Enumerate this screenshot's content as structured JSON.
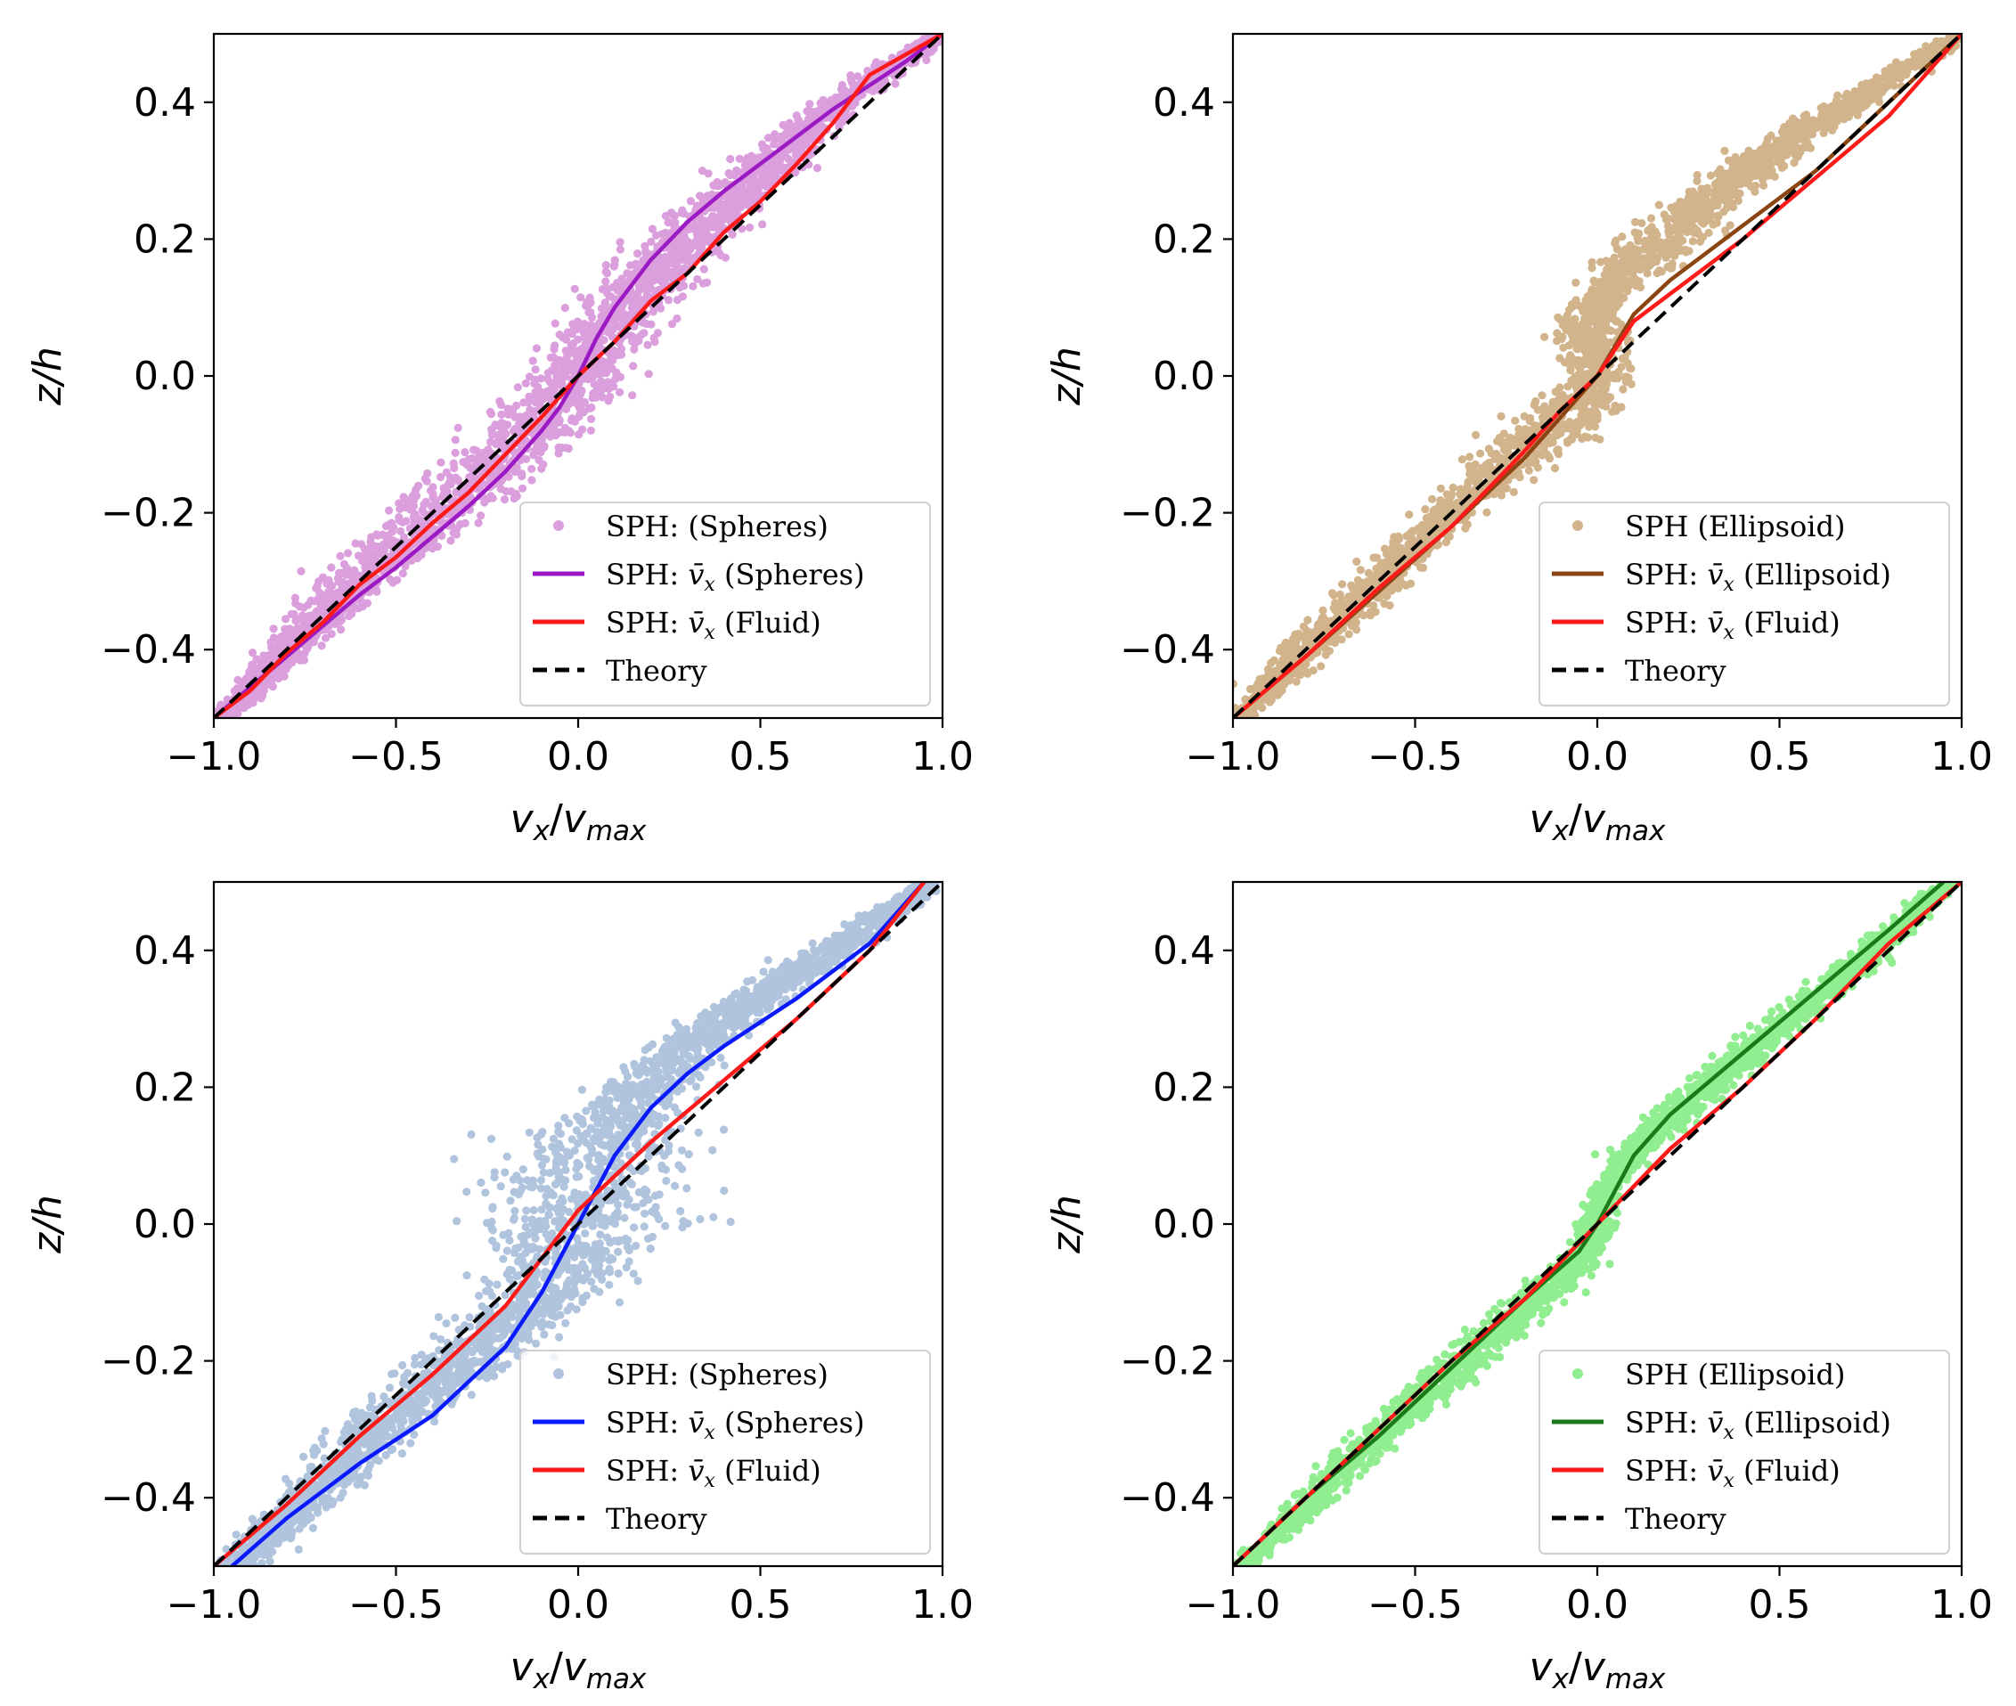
{
  "figure": {
    "panels": 4,
    "layout": "2x2"
  },
  "chart_data": [
    {
      "type": "scatter+line",
      "position": "top-left",
      "xlabel": "v_x/v_max",
      "ylabel": "z/h",
      "xlim": [
        -1.0,
        1.0
      ],
      "ylim": [
        -0.5,
        0.5
      ],
      "xticks": [
        -1.0,
        -0.5,
        0.0,
        0.5,
        1.0
      ],
      "xtick_labels": [
        "−1.0",
        "−0.5",
        "0.0",
        "0.5",
        "1.0"
      ],
      "yticks": [
        -0.4,
        -0.2,
        0.0,
        0.2,
        0.4
      ],
      "ytick_labels": [
        "−0.4",
        "−0.2",
        "0.0",
        "0.2",
        "0.4"
      ],
      "legend_position": "lower-right",
      "scatter": {
        "name": "SPH: (Spheres)",
        "color": "#da9fdc",
        "profile": {
          "z": [
            -0.5,
            -0.4,
            -0.3,
            -0.2,
            -0.1,
            -0.04,
            0.0,
            0.05,
            0.1,
            0.2,
            0.3,
            0.4,
            0.5
          ],
          "center": [
            -0.97,
            -0.8,
            -0.6,
            -0.38,
            -0.17,
            -0.06,
            0.0,
            0.05,
            0.12,
            0.3,
            0.5,
            0.72,
            1.0
          ],
          "width": [
            0.03,
            0.06,
            0.09,
            0.12,
            0.14,
            0.13,
            0.11,
            0.12,
            0.13,
            0.11,
            0.09,
            0.06,
            0.03
          ]
        }
      },
      "series": [
        {
          "name": "SPH: v̄x (Spheres)",
          "legend_main": "SPH: ",
          "legend_var": "v̄x",
          "legend_tail": " (Spheres)",
          "color": "#9b1ac4",
          "style": "solid",
          "x": [
            -1.0,
            -0.9,
            -0.8,
            -0.7,
            -0.6,
            -0.5,
            -0.4,
            -0.3,
            -0.2,
            -0.1,
            -0.05,
            0.0,
            0.05,
            0.1,
            0.2,
            0.3,
            0.4,
            0.5,
            0.6,
            0.7,
            0.8,
            0.9,
            1.0
          ],
          "y": [
            -0.5,
            -0.455,
            -0.41,
            -0.365,
            -0.32,
            -0.28,
            -0.235,
            -0.19,
            -0.14,
            -0.08,
            -0.045,
            0.0,
            0.055,
            0.1,
            0.17,
            0.225,
            0.27,
            0.31,
            0.35,
            0.39,
            0.425,
            0.46,
            0.5
          ]
        },
        {
          "name": "SPH: v̄x (Fluid)",
          "legend_main": "SPH: ",
          "legend_var": "v̄x",
          "legend_tail": " (Fluid)",
          "color": "#ff1a1a",
          "style": "solid",
          "x": [
            -1.0,
            -0.9,
            -0.8,
            -0.7,
            -0.6,
            -0.5,
            -0.4,
            -0.3,
            -0.2,
            -0.1,
            0.0,
            0.1,
            0.2,
            0.3,
            0.4,
            0.5,
            0.6,
            0.7,
            0.8,
            0.9,
            1.0
          ],
          "y": [
            -0.5,
            -0.46,
            -0.405,
            -0.36,
            -0.305,
            -0.265,
            -0.215,
            -0.17,
            -0.115,
            -0.06,
            0.0,
            0.05,
            0.11,
            0.15,
            0.21,
            0.255,
            0.31,
            0.37,
            0.44,
            0.47,
            0.5
          ]
        },
        {
          "name": "Theory",
          "legend_main": "Theory",
          "color": "#000000",
          "style": "dashed",
          "x": [
            -1.0,
            1.0
          ],
          "y": [
            -0.5,
            0.5
          ]
        }
      ]
    },
    {
      "type": "scatter+line",
      "position": "top-right",
      "xlabel": "v_x/v_max",
      "ylabel": "z/h",
      "xlim": [
        -1.0,
        1.0
      ],
      "ylim": [
        -0.5,
        0.5
      ],
      "xticks": [
        -1.0,
        -0.5,
        0.0,
        0.5,
        1.0
      ],
      "xtick_labels": [
        "−1.0",
        "−0.5",
        "0.0",
        "0.5",
        "1.0"
      ],
      "yticks": [
        -0.4,
        -0.2,
        0.0,
        0.2,
        0.4
      ],
      "ytick_labels": [
        "−0.4",
        "−0.2",
        "0.0",
        "0.2",
        "0.4"
      ],
      "legend_position": "lower-right",
      "scatter": {
        "name": "SPH (Ellipsoid)",
        "color": "#d2b48c",
        "profile": {
          "z": [
            -0.5,
            -0.4,
            -0.3,
            -0.2,
            -0.12,
            -0.08,
            -0.04,
            0.0,
            0.04,
            0.08,
            0.12,
            0.15,
            0.2,
            0.3,
            0.4,
            0.5
          ],
          "center": [
            -0.98,
            -0.8,
            -0.6,
            -0.4,
            -0.23,
            -0.13,
            -0.05,
            0.0,
            -0.02,
            -0.02,
            0.02,
            0.08,
            0.18,
            0.4,
            0.7,
            1.0
          ],
          "width": [
            0.03,
            0.06,
            0.07,
            0.07,
            0.1,
            0.12,
            0.11,
            0.07,
            0.08,
            0.09,
            0.06,
            0.1,
            0.11,
            0.08,
            0.06,
            0.03
          ]
        }
      },
      "series": [
        {
          "name": "SPH: v̄x (Ellipsoid)",
          "legend_main": "SPH: ",
          "legend_var": "v̄x",
          "legend_tail": " (Ellipsoid)",
          "color": "#8b4513",
          "style": "solid",
          "x": [
            -1.0,
            -0.8,
            -0.6,
            -0.4,
            -0.2,
            -0.1,
            0.0,
            0.1,
            0.2,
            0.4,
            0.6,
            0.8,
            1.0
          ],
          "y": [
            -0.5,
            -0.41,
            -0.315,
            -0.22,
            -0.12,
            -0.06,
            0.0,
            0.09,
            0.14,
            0.22,
            0.3,
            0.4,
            0.5
          ]
        },
        {
          "name": "SPH: v̄x (Fluid)",
          "legend_main": "SPH: ",
          "legend_var": "v̄x",
          "legend_tail": " (Fluid)",
          "color": "#ff1a1a",
          "style": "solid",
          "x": [
            -1.0,
            -0.8,
            -0.6,
            -0.4,
            -0.2,
            -0.1,
            0.0,
            0.1,
            0.2,
            0.4,
            0.6,
            0.8,
            1.0
          ],
          "y": [
            -0.5,
            -0.41,
            -0.31,
            -0.22,
            -0.11,
            -0.05,
            0.0,
            0.08,
            0.12,
            0.2,
            0.29,
            0.38,
            0.5
          ]
        },
        {
          "name": "Theory",
          "legend_main": "Theory",
          "color": "#000000",
          "style": "dashed",
          "x": [
            -1.0,
            1.0
          ],
          "y": [
            -0.5,
            0.5
          ]
        }
      ]
    },
    {
      "type": "scatter+line",
      "position": "bottom-left",
      "xlabel": "v_x/v_max",
      "ylabel": "z/h",
      "xlim": [
        -1.0,
        1.0
      ],
      "ylim": [
        -0.5,
        0.5
      ],
      "xticks": [
        -1.0,
        -0.5,
        0.0,
        0.5,
        1.0
      ],
      "xtick_labels": [
        "−1.0",
        "−0.5",
        "0.0",
        "0.5",
        "1.0"
      ],
      "yticks": [
        -0.4,
        -0.2,
        0.0,
        0.2,
        0.4
      ],
      "ytick_labels": [
        "−0.4",
        "−0.2",
        "0.0",
        "0.2",
        "0.4"
      ],
      "legend_position": "lower-right",
      "scatter": {
        "name": "SPH: (Spheres)",
        "color": "#b0c4de",
        "profile": {
          "z": [
            -0.5,
            -0.4,
            -0.3,
            -0.2,
            -0.1,
            -0.05,
            0.0,
            0.05,
            0.1,
            0.15,
            0.2,
            0.3,
            0.4,
            0.5
          ],
          "center": [
            -0.93,
            -0.74,
            -0.55,
            -0.3,
            -0.1,
            -0.02,
            0.0,
            0.02,
            0.05,
            0.1,
            0.18,
            0.4,
            0.7,
            0.97
          ],
          "width": [
            0.05,
            0.08,
            0.1,
            0.12,
            0.14,
            0.22,
            0.27,
            0.27,
            0.24,
            0.15,
            0.12,
            0.09,
            0.07,
            0.04
          ]
        }
      },
      "series": [
        {
          "name": "SPH: v̄x (Spheres)",
          "legend_main": "SPH: ",
          "legend_var": "v̄x",
          "legend_tail": " (Spheres)",
          "color": "#0a1aff",
          "style": "solid",
          "x": [
            -0.95,
            -0.8,
            -0.6,
            -0.4,
            -0.2,
            -0.1,
            0.0,
            0.1,
            0.2,
            0.3,
            0.4,
            0.6,
            0.8,
            0.95
          ],
          "y": [
            -0.5,
            -0.43,
            -0.35,
            -0.28,
            -0.18,
            -0.1,
            0.0,
            0.1,
            0.17,
            0.22,
            0.26,
            0.33,
            0.41,
            0.5
          ]
        },
        {
          "name": "SPH: v̄x (Fluid)",
          "legend_main": "SPH: ",
          "legend_var": "v̄x",
          "legend_tail": " (Fluid)",
          "color": "#ff1a1a",
          "style": "solid",
          "x": [
            -1.0,
            -0.8,
            -0.6,
            -0.4,
            -0.2,
            0.0,
            0.2,
            0.4,
            0.6,
            0.8,
            0.95
          ],
          "y": [
            -0.5,
            -0.41,
            -0.31,
            -0.22,
            -0.12,
            0.02,
            0.12,
            0.21,
            0.3,
            0.4,
            0.5
          ]
        },
        {
          "name": "Theory",
          "legend_main": "Theory",
          "color": "#000000",
          "style": "dashed",
          "x": [
            -1.0,
            1.0
          ],
          "y": [
            -0.5,
            0.5
          ]
        }
      ]
    },
    {
      "type": "scatter+line",
      "position": "bottom-right",
      "xlabel": "v_x/v_max",
      "ylabel": "z/h",
      "xlim": [
        -1.0,
        1.0
      ],
      "ylim": [
        -0.5,
        0.5
      ],
      "xticks": [
        -1.0,
        -0.5,
        0.0,
        0.5,
        1.0
      ],
      "xtick_labels": [
        "−1.0",
        "−0.5",
        "0.0",
        "0.5",
        "1.0"
      ],
      "yticks": [
        -0.4,
        -0.2,
        0.0,
        0.2,
        0.4
      ],
      "ytick_labels": [
        "−0.4",
        "−0.2",
        "0.0",
        "0.2",
        "0.4"
      ],
      "legend_position": "lower-right",
      "scatter": {
        "name": "SPH (Ellipsoid)",
        "color": "#90ee90",
        "profile": {
          "z": [
            -0.5,
            -0.4,
            -0.3,
            -0.2,
            -0.1,
            -0.05,
            0.0,
            0.05,
            0.1,
            0.2,
            0.3,
            0.4,
            0.5
          ],
          "center": [
            -0.97,
            -0.78,
            -0.58,
            -0.36,
            -0.15,
            -0.04,
            0.0,
            0.02,
            0.09,
            0.3,
            0.53,
            0.76,
            0.97
          ],
          "width": [
            0.03,
            0.05,
            0.06,
            0.07,
            0.07,
            0.05,
            0.04,
            0.03,
            0.05,
            0.06,
            0.06,
            0.05,
            0.03
          ]
        }
      },
      "series": [
        {
          "name": "SPH: v̄x (Ellipsoid)",
          "legend_main": "SPH: ",
          "legend_var": "v̄x",
          "legend_tail": " (Ellipsoid)",
          "color": "#1a7a1a",
          "style": "solid",
          "x": [
            -1.0,
            -0.8,
            -0.6,
            -0.4,
            -0.2,
            -0.05,
            0.0,
            0.1,
            0.2,
            0.4,
            0.6,
            0.8,
            0.95
          ],
          "y": [
            -0.5,
            -0.4,
            -0.31,
            -0.21,
            -0.11,
            -0.04,
            0.0,
            0.1,
            0.16,
            0.25,
            0.34,
            0.43,
            0.5
          ]
        },
        {
          "name": "SPH: v̄x (Fluid)",
          "legend_main": "SPH: ",
          "legend_var": "v̄x",
          "legend_tail": " (Fluid)",
          "color": "#ff1a1a",
          "style": "solid",
          "x": [
            -1.0,
            -0.8,
            -0.6,
            -0.4,
            -0.2,
            0.0,
            0.2,
            0.4,
            0.6,
            0.8,
            1.0
          ],
          "y": [
            -0.5,
            -0.4,
            -0.3,
            -0.2,
            -0.11,
            0.0,
            0.11,
            0.2,
            0.3,
            0.41,
            0.5
          ]
        },
        {
          "name": "Theory",
          "legend_main": "Theory",
          "color": "#000000",
          "style": "dashed",
          "x": [
            -1.0,
            1.0
          ],
          "y": [
            -0.5,
            0.5
          ]
        }
      ]
    }
  ]
}
